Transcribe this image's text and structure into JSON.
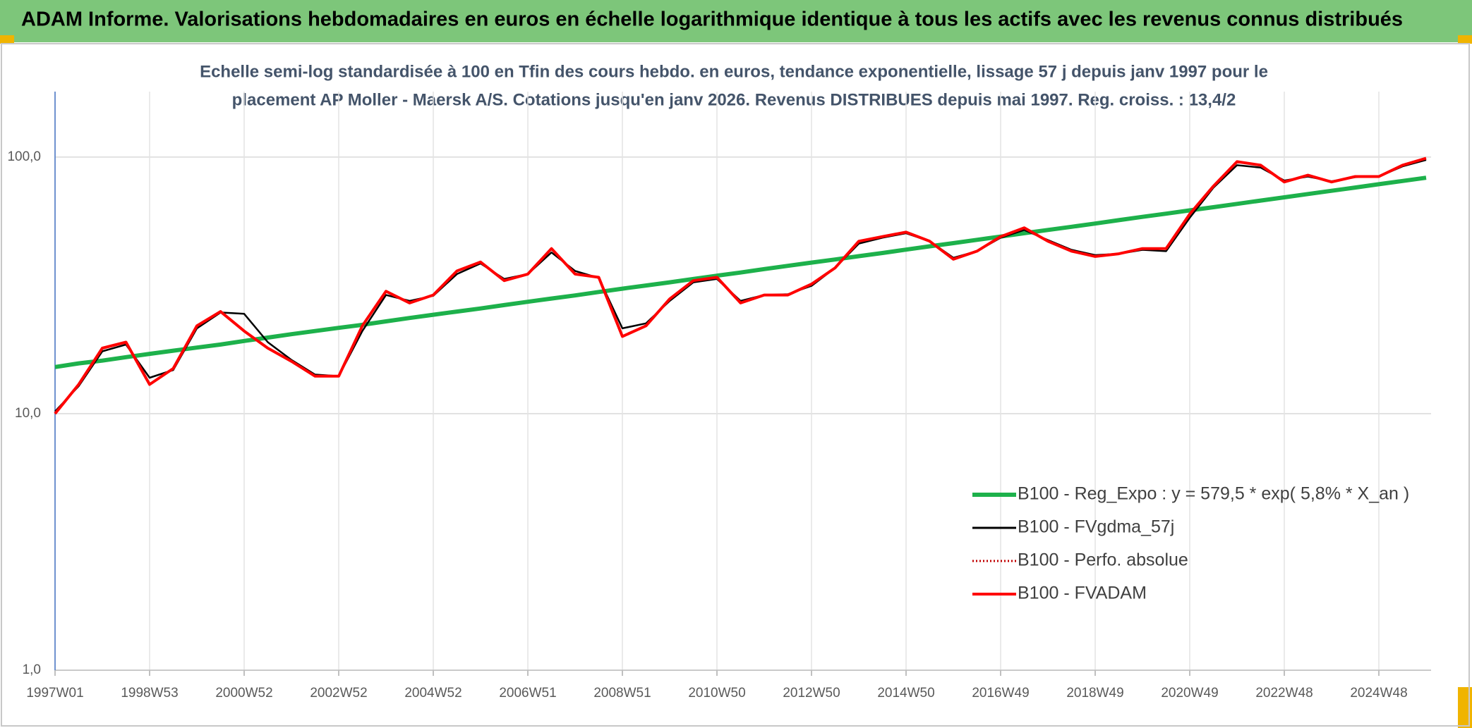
{
  "header": "ADAM Informe. Valorisations hebdomadaires en euros en échelle logarithmique identique à tous les actifs avec les revenus connus distribués",
  "chart_data": {
    "type": "line",
    "title": [
      "Echelle semi-log standardisée à 100 en Tfin des cours hebdo. en euros, tendance exponentielle, lissage 57 j depuis janv 1997 pour le",
      "placement AP Moller - Maersk A/S. Cotations jusqu'en janv 2026. Revenus DISTRIBUES depuis mai 1997. Reg. croiss. : 13,4/2"
    ],
    "categories": [
      "1997W01",
      null,
      null,
      null,
      "1998W53",
      null,
      null,
      null,
      "2000W52",
      null,
      null,
      null,
      "2002W52",
      null,
      null,
      null,
      "2004W52",
      null,
      null,
      null,
      "2006W51",
      null,
      null,
      null,
      "2008W51",
      null,
      null,
      null,
      "2010W50",
      null,
      null,
      null,
      "2012W50",
      null,
      null,
      null,
      "2014W50",
      null,
      null,
      null,
      "2016W49",
      null,
      null,
      null,
      "2018W49",
      null,
      null,
      null,
      "2020W49",
      null,
      null,
      null,
      "2022W48",
      null,
      null,
      null,
      "2024W48",
      null,
      null
    ],
    "series": [
      {
        "name": "B100 - Reg_Expo : y = 579,5 * exp( 5,8% *  X_an )",
        "color": "#1db14b",
        "style": "solid",
        "width": 6,
        "values": [
          15.2,
          15.7,
          16.1,
          16.6,
          17.1,
          17.6,
          18.1,
          18.6,
          19.2,
          19.8,
          20.4,
          21.0,
          21.6,
          22.2,
          22.9,
          23.6,
          24.3,
          25.0,
          25.7,
          26.5,
          27.3,
          28.1,
          28.9,
          29.8,
          30.7,
          31.6,
          32.5,
          33.5,
          34.5,
          35.5,
          36.6,
          37.7,
          38.8,
          39.9,
          41.1,
          42.3,
          43.6,
          44.9,
          46.2,
          47.6,
          49.0,
          50.5,
          52.0,
          53.5,
          55.1,
          56.8,
          58.5,
          60.2,
          62.0,
          63.8,
          65.7,
          67.7,
          69.7,
          71.8,
          73.9,
          76.1,
          78.4,
          80.7,
          83.1
        ]
      },
      {
        "name": "B100 - FVgdma_57j",
        "color": "#000000",
        "style": "solid",
        "width": 2.5,
        "values": [
          10.2,
          12.8,
          17.5,
          18.6,
          13.8,
          14.8,
          21.5,
          24.8,
          24.5,
          19.0,
          16.2,
          14.2,
          14.0,
          21.0,
          29.0,
          27.5,
          28.8,
          35.0,
          38.5,
          33.5,
          35.0,
          42.5,
          36.0,
          33.8,
          21.5,
          22.5,
          27.5,
          32.5,
          33.5,
          27.5,
          29.0,
          29.2,
          31.5,
          37.0,
          46.0,
          48.5,
          50.5,
          47.0,
          40.5,
          43.0,
          48.5,
          52.0,
          47.5,
          43.5,
          41.5,
          42.0,
          43.5,
          43.0,
          58.0,
          76.0,
          93.0,
          91.0,
          81.0,
          84.0,
          80.5,
          83.5,
          84.0,
          92.0,
          97.5
        ]
      },
      {
        "name": "B100 - Perfo. absolue",
        "color": "#c00000",
        "style": "dotted",
        "width": 2,
        "values": [
          10,
          13,
          18,
          19,
          13,
          15,
          22,
          25,
          21,
          18,
          16,
          14,
          14,
          22,
          30,
          27,
          29,
          36,
          39,
          33,
          35,
          44,
          35,
          34,
          20,
          22,
          28,
          33,
          34,
          27,
          29,
          29,
          32,
          37,
          47,
          49,
          51,
          47,
          40,
          43,
          49,
          53,
          47,
          43,
          41,
          42,
          44,
          44,
          60,
          77,
          96,
          93,
          80,
          85,
          80,
          84,
          84,
          93,
          99
        ]
      },
      {
        "name": "B100 - FVADAM",
        "color": "#ff0000",
        "style": "solid",
        "width": 4,
        "values": [
          10,
          13,
          18,
          19,
          13,
          15,
          22,
          25,
          21,
          18,
          16,
          14,
          14,
          22,
          30,
          27,
          29,
          36,
          39,
          33,
          35,
          44,
          35,
          34,
          20,
          22,
          28,
          33,
          34,
          27,
          29,
          29,
          32,
          37,
          47,
          49,
          51,
          47,
          40,
          43,
          49,
          53,
          47,
          43,
          41,
          42,
          44,
          44,
          60,
          77,
          96,
          93,
          80,
          85,
          80,
          84,
          84,
          93,
          99
        ]
      }
    ],
    "log_scale": true,
    "ylim": [
      1,
      180
    ],
    "yticks": [
      {
        "value": 1,
        "label": "1,0"
      },
      {
        "value": 10,
        "label": "10,0"
      },
      {
        "value": 100,
        "label": "100,0"
      }
    ],
    "grid": true,
    "legend": "lower right"
  }
}
